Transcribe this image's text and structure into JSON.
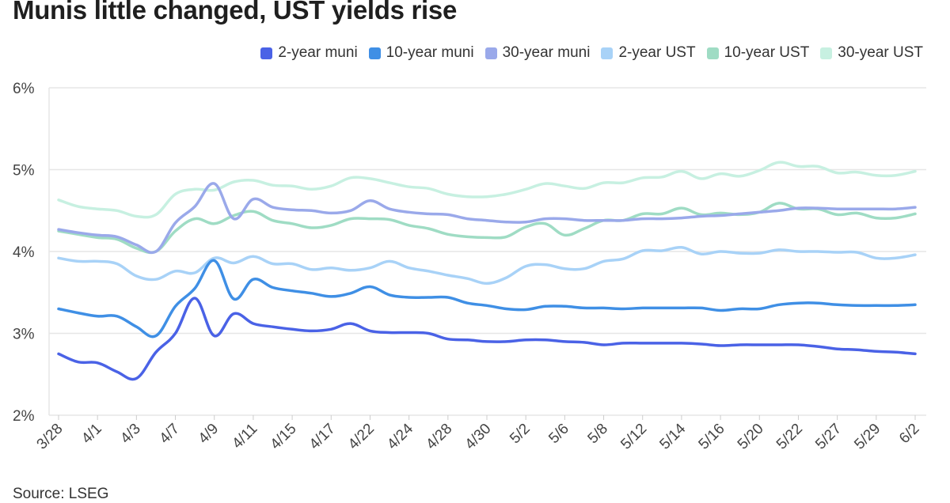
{
  "page": {
    "title": "Munis little changed, UST yields rise",
    "source": "Source: LSEG"
  },
  "chart_data": {
    "type": "line",
    "title": "Munis little changed, UST yields rise",
    "xlabel": "",
    "ylabel": "",
    "ylim": [
      2,
      6
    ],
    "yticks": [
      "2%",
      "3%",
      "4%",
      "5%",
      "6%"
    ],
    "grid": true,
    "legend": "top-right",
    "x": [
      "3/28",
      "3/31",
      "4/1",
      "4/2",
      "4/3",
      "4/4",
      "4/7",
      "4/8",
      "4/9",
      "4/10",
      "4/11",
      "4/14",
      "4/15",
      "4/16",
      "4/17",
      "4/21",
      "4/22",
      "4/23",
      "4/24",
      "4/25",
      "4/28",
      "4/29",
      "4/30",
      "5/1",
      "5/2",
      "5/5",
      "5/6",
      "5/7",
      "5/8",
      "5/9",
      "5/12",
      "5/13",
      "5/14",
      "5/15",
      "5/16",
      "5/19",
      "5/20",
      "5/21",
      "5/22",
      "5/23",
      "5/27",
      "5/28",
      "5/29",
      "5/30",
      "6/2"
    ],
    "xtick_labels": [
      "3/28",
      "4/1",
      "4/3",
      "4/7",
      "4/9",
      "4/11",
      "4/15",
      "4/17",
      "4/22",
      "4/24",
      "4/28",
      "4/30",
      "5/2",
      "5/6",
      "5/8",
      "5/12",
      "5/14",
      "5/16",
      "5/20",
      "5/22",
      "5/27",
      "5/29",
      "6/2"
    ],
    "series": [
      {
        "name": "2-year muni",
        "color": "#4a62e6",
        "values": [
          2.75,
          2.65,
          2.64,
          2.53,
          2.45,
          2.77,
          3.0,
          3.43,
          2.97,
          3.24,
          3.12,
          3.08,
          3.05,
          3.03,
          3.05,
          3.12,
          3.03,
          3.01,
          3.01,
          3.0,
          2.93,
          2.92,
          2.9,
          2.9,
          2.92,
          2.92,
          2.9,
          2.89,
          2.86,
          2.88,
          2.88,
          2.88,
          2.88,
          2.87,
          2.85,
          2.86,
          2.86,
          2.86,
          2.86,
          2.84,
          2.81,
          2.8,
          2.78,
          2.77,
          2.75
        ]
      },
      {
        "name": "10-year muni",
        "color": "#3f8fe5",
        "values": [
          3.3,
          3.25,
          3.21,
          3.21,
          3.08,
          2.97,
          3.33,
          3.55,
          3.89,
          3.42,
          3.66,
          3.56,
          3.52,
          3.49,
          3.45,
          3.49,
          3.57,
          3.47,
          3.44,
          3.44,
          3.44,
          3.37,
          3.34,
          3.3,
          3.29,
          3.33,
          3.33,
          3.31,
          3.31,
          3.3,
          3.31,
          3.31,
          3.31,
          3.31,
          3.28,
          3.3,
          3.3,
          3.35,
          3.37,
          3.37,
          3.35,
          3.34,
          3.34,
          3.34,
          3.35
        ]
      },
      {
        "name": "30-year muni",
        "color": "#9aa9ea",
        "values": [
          4.27,
          4.23,
          4.2,
          4.18,
          4.08,
          4.0,
          4.35,
          4.55,
          4.83,
          4.4,
          4.64,
          4.54,
          4.51,
          4.5,
          4.47,
          4.5,
          4.62,
          4.52,
          4.48,
          4.46,
          4.45,
          4.4,
          4.38,
          4.36,
          4.36,
          4.4,
          4.4,
          4.38,
          4.38,
          4.38,
          4.4,
          4.4,
          4.41,
          4.43,
          4.44,
          4.46,
          4.48,
          4.5,
          4.53,
          4.53,
          4.52,
          4.52,
          4.52,
          4.52,
          4.54
        ]
      },
      {
        "name": "2-year UST",
        "color": "#a8d2f7",
        "values": [
          3.92,
          3.88,
          3.88,
          3.85,
          3.7,
          3.66,
          3.76,
          3.74,
          3.92,
          3.86,
          3.94,
          3.85,
          3.85,
          3.78,
          3.8,
          3.77,
          3.8,
          3.88,
          3.8,
          3.76,
          3.71,
          3.67,
          3.61,
          3.68,
          3.82,
          3.84,
          3.79,
          3.79,
          3.88,
          3.91,
          4.01,
          4.01,
          4.05,
          3.97,
          4.0,
          3.98,
          3.98,
          4.02,
          4.0,
          4.0,
          3.99,
          3.99,
          3.92,
          3.92,
          3.96
        ]
      },
      {
        "name": "10-year UST",
        "color": "#9fdcc4",
        "values": [
          4.25,
          4.21,
          4.17,
          4.15,
          4.04,
          4.0,
          4.25,
          4.4,
          4.34,
          4.44,
          4.49,
          4.38,
          4.34,
          4.29,
          4.32,
          4.4,
          4.4,
          4.39,
          4.32,
          4.28,
          4.21,
          4.18,
          4.17,
          4.18,
          4.3,
          4.34,
          4.2,
          4.28,
          4.38,
          4.38,
          4.46,
          4.46,
          4.53,
          4.45,
          4.47,
          4.45,
          4.48,
          4.59,
          4.52,
          4.52,
          4.45,
          4.47,
          4.41,
          4.41,
          4.46
        ]
      },
      {
        "name": "30-year UST",
        "color": "#c7f0e1",
        "values": [
          4.63,
          4.55,
          4.52,
          4.5,
          4.43,
          4.45,
          4.7,
          4.76,
          4.75,
          4.85,
          4.87,
          4.81,
          4.8,
          4.76,
          4.8,
          4.9,
          4.89,
          4.84,
          4.79,
          4.77,
          4.7,
          4.67,
          4.67,
          4.7,
          4.76,
          4.83,
          4.8,
          4.77,
          4.84,
          4.84,
          4.9,
          4.91,
          4.98,
          4.89,
          4.95,
          4.92,
          4.99,
          5.09,
          5.04,
          5.04,
          4.96,
          4.97,
          4.93,
          4.93,
          4.98
        ]
      }
    ]
  }
}
